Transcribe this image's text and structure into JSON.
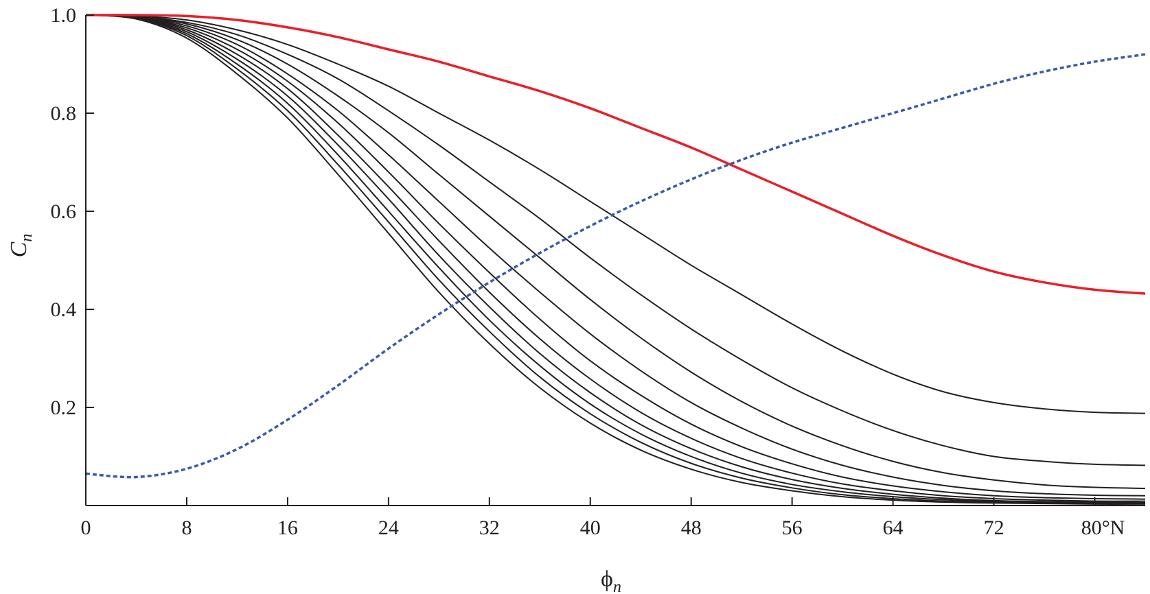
{
  "chart_data": {
    "type": "line",
    "title": "",
    "xlabel": "ϕ",
    "xlabel_sub": "n",
    "ylabel": "C",
    "ylabel_sub": "n",
    "xlim": [
      0,
      84
    ],
    "ylim": [
      0,
      1.0
    ],
    "x_ticks": [
      {
        "value": 0,
        "label": "0"
      },
      {
        "value": 8,
        "label": "8"
      },
      {
        "value": 16,
        "label": "16"
      },
      {
        "value": 24,
        "label": "24"
      },
      {
        "value": 32,
        "label": "32"
      },
      {
        "value": 40,
        "label": "40"
      },
      {
        "value": 48,
        "label": "48"
      },
      {
        "value": 56,
        "label": "56"
      },
      {
        "value": 64,
        "label": "64"
      },
      {
        "value": 72,
        "label": "72"
      },
      {
        "value": 80,
        "label": "80°N"
      }
    ],
    "y_ticks": [
      {
        "value": 0.2,
        "label": "0.2"
      },
      {
        "value": 0.4,
        "label": "0.4"
      },
      {
        "value": 0.6,
        "label": "0.6"
      },
      {
        "value": 0.8,
        "label": "0.8"
      },
      {
        "value": 1.0,
        "label": "1.0"
      }
    ],
    "grid": false,
    "legend": "none",
    "x": [
      0,
      4,
      8,
      12,
      16,
      20,
      24,
      28,
      32,
      36,
      40,
      44,
      48,
      52,
      56,
      60,
      64,
      68,
      72,
      76,
      80,
      84
    ],
    "series": [
      {
        "style": "solid",
        "color": "#e8202a",
        "width": 3.5,
        "values": [
          1.0,
          1.0,
          0.998,
          0.99,
          0.975,
          0.955,
          0.93,
          0.905,
          0.875,
          0.845,
          0.81,
          0.77,
          0.73,
          0.685,
          0.64,
          0.595,
          0.55,
          0.51,
          0.477,
          0.455,
          0.44,
          0.432
        ]
      },
      {
        "style": "solid",
        "color": "#231f20",
        "width": 2,
        "values": [
          1.0,
          0.998,
          0.99,
          0.97,
          0.94,
          0.9,
          0.855,
          0.8,
          0.745,
          0.685,
          0.62,
          0.555,
          0.49,
          0.43,
          0.37,
          0.315,
          0.268,
          0.232,
          0.21,
          0.197,
          0.19,
          0.188
        ]
      },
      {
        "style": "solid",
        "color": "#231f20",
        "width": 2,
        "values": [
          1.0,
          0.997,
          0.985,
          0.96,
          0.92,
          0.87,
          0.805,
          0.735,
          0.66,
          0.585,
          0.505,
          0.43,
          0.36,
          0.297,
          0.24,
          0.193,
          0.153,
          0.122,
          0.1,
          0.09,
          0.084,
          0.082
        ]
      },
      {
        "style": "solid",
        "color": "#231f20",
        "width": 2,
        "values": [
          1.0,
          0.997,
          0.982,
          0.95,
          0.9,
          0.835,
          0.76,
          0.675,
          0.59,
          0.505,
          0.42,
          0.342,
          0.272,
          0.212,
          0.162,
          0.122,
          0.09,
          0.067,
          0.052,
          0.042,
          0.037,
          0.035
        ]
      },
      {
        "style": "solid",
        "color": "#231f20",
        "width": 2,
        "values": [
          1.0,
          0.996,
          0.978,
          0.94,
          0.88,
          0.805,
          0.715,
          0.62,
          0.525,
          0.435,
          0.35,
          0.275,
          0.21,
          0.158,
          0.115,
          0.082,
          0.058,
          0.041,
          0.03,
          0.024,
          0.021,
          0.02
        ]
      },
      {
        "style": "solid",
        "color": "#231f20",
        "width": 2,
        "values": [
          1.0,
          0.995,
          0.974,
          0.93,
          0.865,
          0.78,
          0.68,
          0.575,
          0.475,
          0.38,
          0.295,
          0.225,
          0.166,
          0.12,
          0.085,
          0.058,
          0.04,
          0.028,
          0.02,
          0.016,
          0.014,
          0.013
        ]
      },
      {
        "style": "solid",
        "color": "#231f20",
        "width": 2,
        "values": [
          1.0,
          0.995,
          0.97,
          0.92,
          0.85,
          0.755,
          0.65,
          0.54,
          0.435,
          0.34,
          0.258,
          0.19,
          0.137,
          0.096,
          0.066,
          0.044,
          0.03,
          0.02,
          0.014,
          0.011,
          0.009,
          0.009
        ]
      },
      {
        "style": "solid",
        "color": "#231f20",
        "width": 2,
        "values": [
          1.0,
          0.994,
          0.966,
          0.91,
          0.835,
          0.735,
          0.625,
          0.51,
          0.405,
          0.31,
          0.23,
          0.165,
          0.116,
          0.079,
          0.053,
          0.035,
          0.023,
          0.015,
          0.01,
          0.008,
          0.007,
          0.006
        ]
      },
      {
        "style": "solid",
        "color": "#231f20",
        "width": 2,
        "values": [
          1.0,
          0.994,
          0.962,
          0.9,
          0.82,
          0.715,
          0.6,
          0.485,
          0.378,
          0.285,
          0.207,
          0.146,
          0.1,
          0.066,
          0.043,
          0.028,
          0.018,
          0.012,
          0.008,
          0.006,
          0.005,
          0.005
        ]
      },
      {
        "style": "solid",
        "color": "#231f20",
        "width": 2,
        "values": [
          1.0,
          0.993,
          0.958,
          0.89,
          0.805,
          0.695,
          0.578,
          0.46,
          0.355,
          0.262,
          0.187,
          0.129,
          0.086,
          0.056,
          0.036,
          0.022,
          0.014,
          0.009,
          0.006,
          0.005,
          0.004,
          0.004
        ]
      },
      {
        "style": "solid",
        "color": "#231f20",
        "width": 2,
        "values": [
          1.0,
          0.992,
          0.953,
          0.88,
          0.79,
          0.675,
          0.555,
          0.435,
          0.33,
          0.24,
          0.168,
          0.113,
          0.074,
          0.047,
          0.03,
          0.018,
          0.011,
          0.007,
          0.005,
          0.004,
          0.003,
          0.003
        ]
      },
      {
        "style": "dotted",
        "color": "#3c5aa8",
        "width": 3.5,
        "values": [
          0.065,
          0.058,
          0.075,
          0.115,
          0.175,
          0.245,
          0.32,
          0.39,
          0.455,
          0.515,
          0.57,
          0.62,
          0.665,
          0.705,
          0.74,
          0.77,
          0.8,
          0.83,
          0.86,
          0.885,
          0.905,
          0.92
        ]
      }
    ]
  }
}
